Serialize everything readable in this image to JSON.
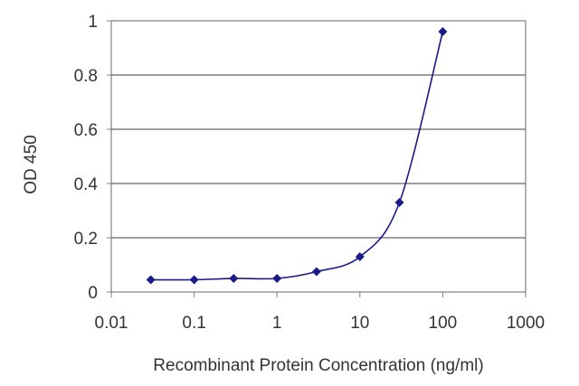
{
  "chart_data": {
    "type": "line",
    "title": "",
    "xlabel": "Recombinant Protein Concentration (ng/ml)",
    "ylabel": "OD 450",
    "x_scale": "log",
    "xlim": [
      0.01,
      1000
    ],
    "ylim": [
      0,
      1
    ],
    "x_ticks": [
      "0.01",
      "0.1",
      "1",
      "10",
      "100",
      "1000"
    ],
    "y_ticks": [
      "0",
      "0.2",
      "0.4",
      "0.6",
      "0.8",
      "1"
    ],
    "grid": "horizontal",
    "legend": "none",
    "series": [
      {
        "x": [
          0.03,
          0.1,
          0.3,
          1,
          3,
          10,
          30,
          100
        ],
        "y": [
          0.045,
          0.045,
          0.05,
          0.05,
          0.075,
          0.13,
          0.33,
          0.96
        ]
      }
    ],
    "colors": {
      "series": "#1a1a8c",
      "plot_border": "#7f7f7f",
      "gridline": "#7f7f7f",
      "text": "#333333"
    }
  }
}
